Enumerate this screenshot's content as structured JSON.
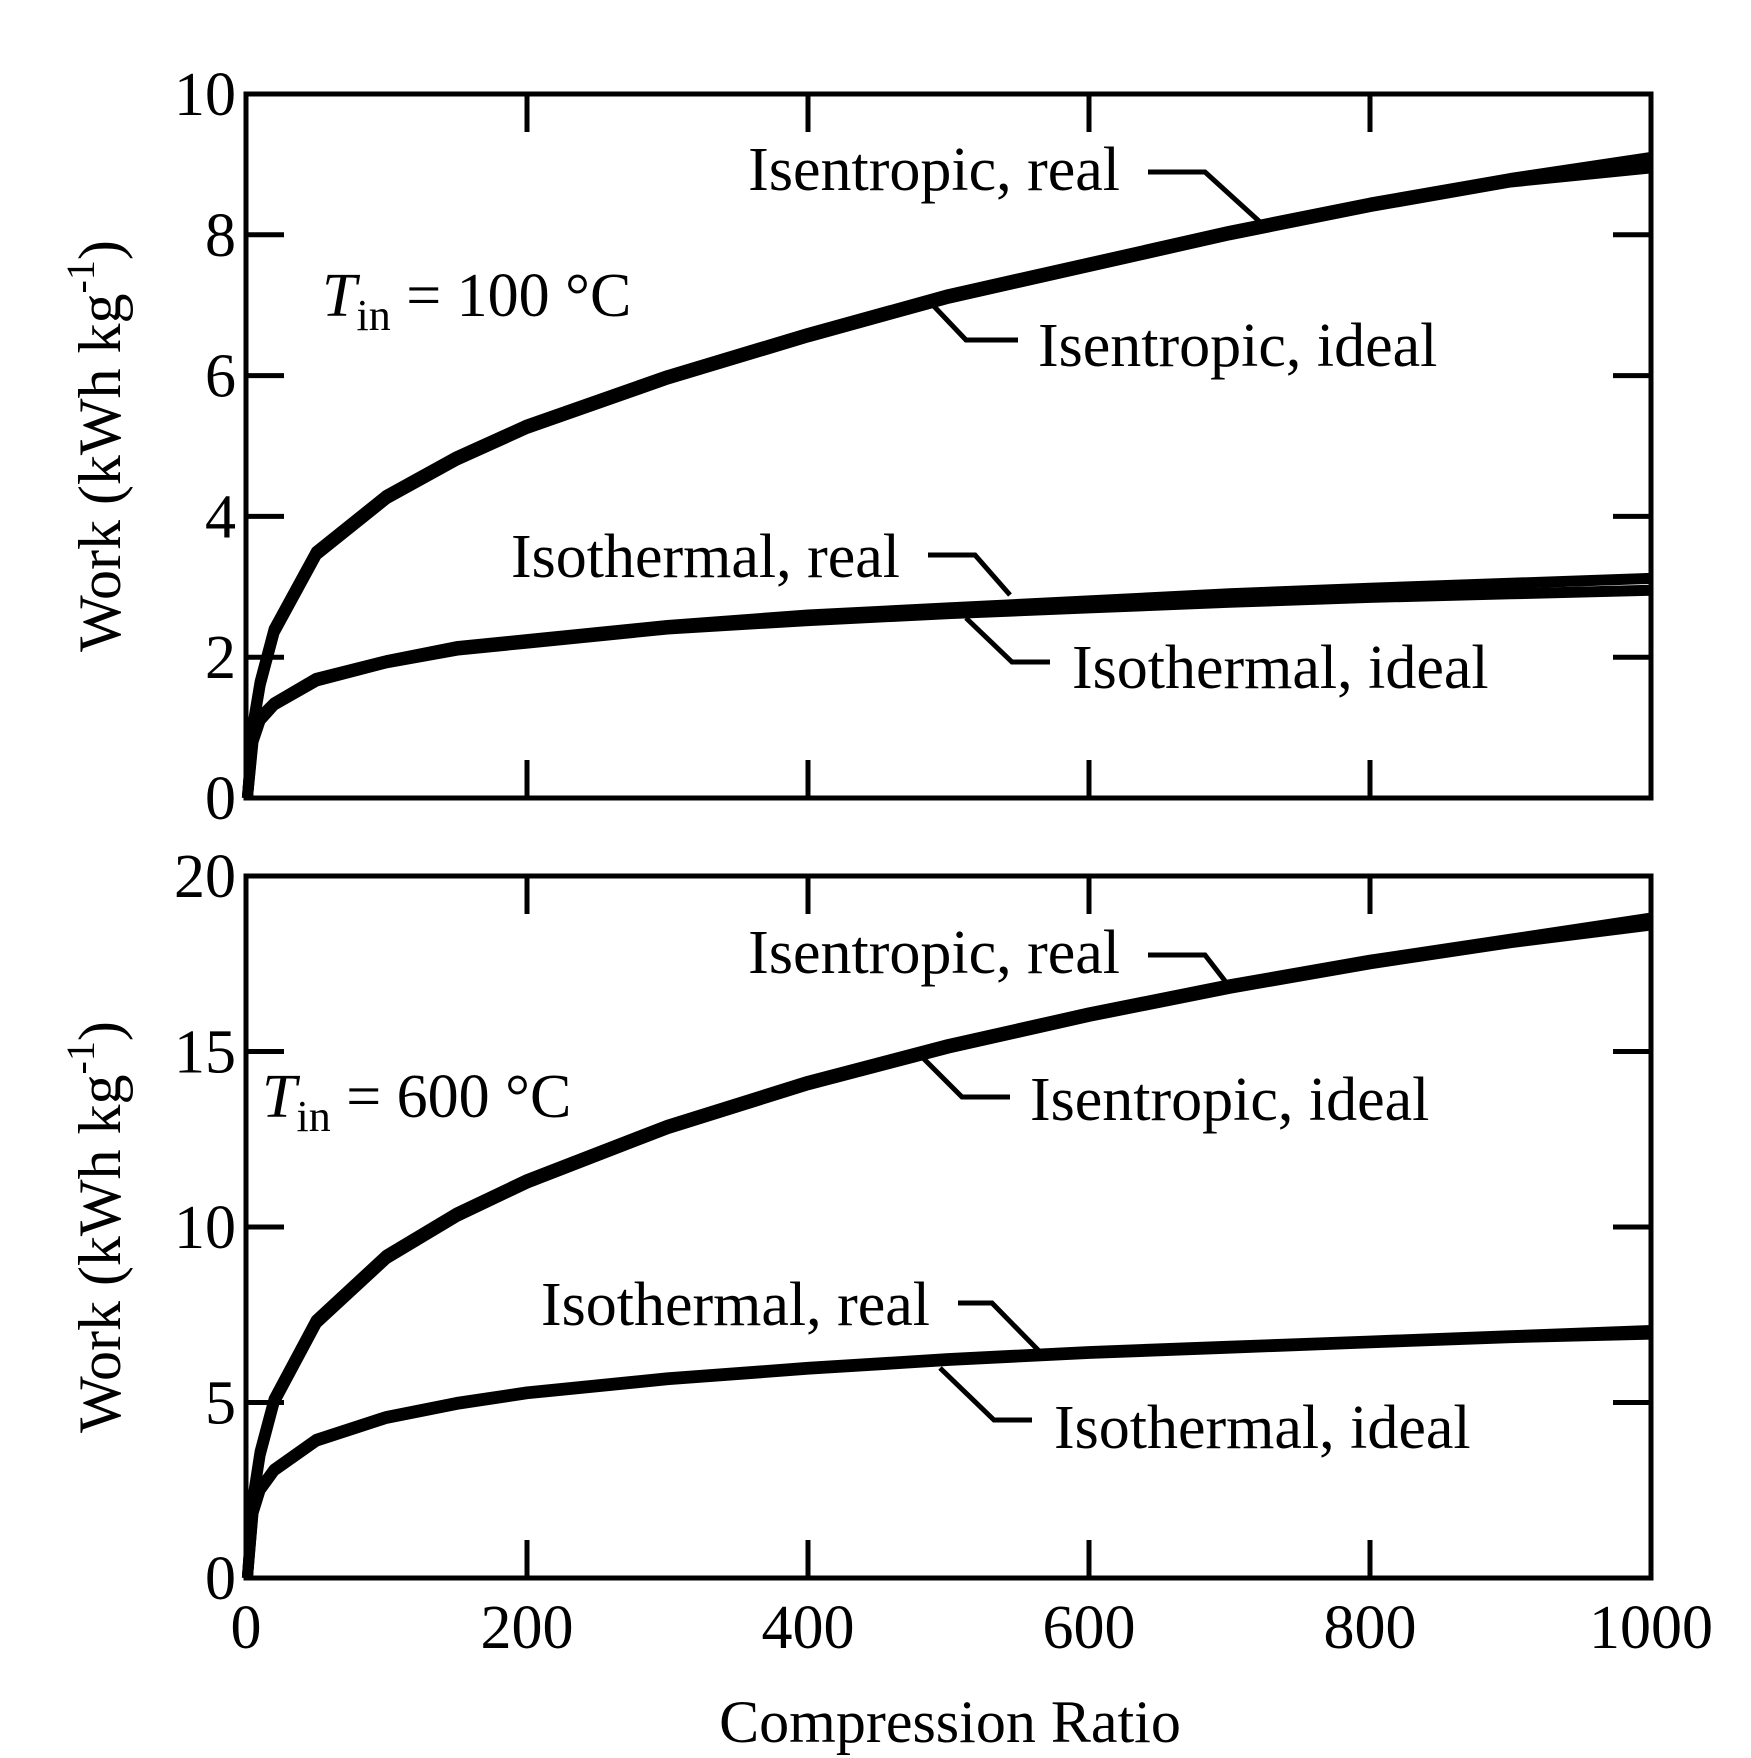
{
  "chart_data": [
    {
      "type": "line",
      "condition": {
        "symbol": "T",
        "subscript": "in",
        "value": "= 100 °C"
      },
      "ylabel": {
        "text": "Work (kWh kg",
        "sup": "-1",
        "close": ")"
      },
      "xlim": [
        0,
        1000
      ],
      "ylim": [
        0,
        10
      ],
      "yticks": [
        0,
        2,
        4,
        6,
        8,
        10
      ],
      "xticks": [
        0,
        200,
        400,
        600,
        800,
        1000
      ],
      "grid": false,
      "series": [
        {
          "name": "Isentropic, real",
          "x": [
            1,
            5,
            10,
            20,
            50,
            100,
            150,
            200,
            300,
            400,
            500,
            600,
            700,
            800,
            900,
            1000
          ],
          "y": [
            0,
            1.05,
            1.65,
            2.4,
            3.5,
            4.3,
            4.85,
            5.3,
            6.0,
            6.6,
            7.15,
            7.6,
            8.05,
            8.45,
            8.8,
            9.1
          ]
        },
        {
          "name": "Isentropic, ideal",
          "x": [
            1,
            5,
            10,
            20,
            50,
            100,
            150,
            200,
            300,
            400,
            500,
            600,
            700,
            800,
            900,
            1000
          ],
          "y": [
            0,
            1.0,
            1.6,
            2.35,
            3.45,
            4.25,
            4.8,
            5.25,
            5.95,
            6.55,
            7.1,
            7.55,
            8.0,
            8.4,
            8.75,
            8.95
          ]
        },
        {
          "name": "Isothermal, real",
          "x": [
            1,
            5,
            10,
            20,
            50,
            100,
            150,
            200,
            300,
            400,
            500,
            600,
            700,
            800,
            900,
            1000
          ],
          "y": [
            0,
            0.85,
            1.15,
            1.35,
            1.7,
            1.95,
            2.15,
            2.25,
            2.45,
            2.6,
            2.7,
            2.8,
            2.9,
            2.98,
            3.05,
            3.12
          ]
        },
        {
          "name": "Isothermal, ideal",
          "x": [
            1,
            5,
            10,
            20,
            50,
            100,
            150,
            200,
            300,
            400,
            500,
            600,
            700,
            800,
            900,
            1000
          ],
          "y": [
            0,
            0.8,
            1.1,
            1.32,
            1.66,
            1.92,
            2.1,
            2.2,
            2.4,
            2.52,
            2.62,
            2.7,
            2.78,
            2.85,
            2.9,
            2.95
          ]
        }
      ]
    },
    {
      "type": "line",
      "condition": {
        "symbol": "T",
        "subscript": "in",
        "value": "= 600 °C"
      },
      "ylabel": {
        "text": "Work (kWh kg",
        "sup": "-1",
        "close": ")"
      },
      "xlabel": "Compression Ratio",
      "xlim": [
        0,
        1000
      ],
      "ylim": [
        0,
        20
      ],
      "yticks": [
        0,
        5,
        10,
        15,
        20
      ],
      "xticks": [
        0,
        200,
        400,
        600,
        800,
        1000
      ],
      "grid": false,
      "series": [
        {
          "name": "Isentropic, real",
          "x": [
            1,
            5,
            10,
            20,
            50,
            100,
            150,
            200,
            300,
            400,
            500,
            600,
            700,
            800,
            900,
            1000
          ],
          "y": [
            0,
            2.3,
            3.6,
            5.1,
            7.35,
            9.2,
            10.4,
            11.35,
            12.9,
            14.15,
            15.2,
            16.1,
            16.9,
            17.6,
            18.2,
            18.8
          ]
        },
        {
          "name": "Isentropic, ideal",
          "x": [
            1,
            5,
            10,
            20,
            50,
            100,
            150,
            200,
            300,
            400,
            500,
            600,
            700,
            800,
            900,
            1000
          ],
          "y": [
            0,
            2.2,
            3.5,
            5.0,
            7.25,
            9.1,
            10.3,
            11.25,
            12.8,
            14.05,
            15.1,
            16.0,
            16.8,
            17.5,
            18.1,
            18.6
          ]
        },
        {
          "name": "Isothermal, real",
          "x": [
            1,
            5,
            10,
            20,
            50,
            100,
            150,
            200,
            300,
            400,
            500,
            600,
            700,
            800,
            900,
            1000
          ],
          "y": [
            0,
            1.9,
            2.55,
            3.1,
            3.95,
            4.6,
            5.0,
            5.3,
            5.7,
            6.0,
            6.25,
            6.45,
            6.6,
            6.75,
            6.9,
            7.05
          ]
        },
        {
          "name": "Isothermal, ideal",
          "x": [
            1,
            5,
            10,
            20,
            50,
            100,
            150,
            200,
            300,
            400,
            500,
            600,
            700,
            800,
            900,
            1000
          ],
          "y": [
            0,
            1.85,
            2.5,
            3.05,
            3.9,
            4.55,
            4.95,
            5.25,
            5.65,
            5.95,
            6.2,
            6.4,
            6.55,
            6.7,
            6.85,
            6.95
          ]
        }
      ]
    }
  ]
}
